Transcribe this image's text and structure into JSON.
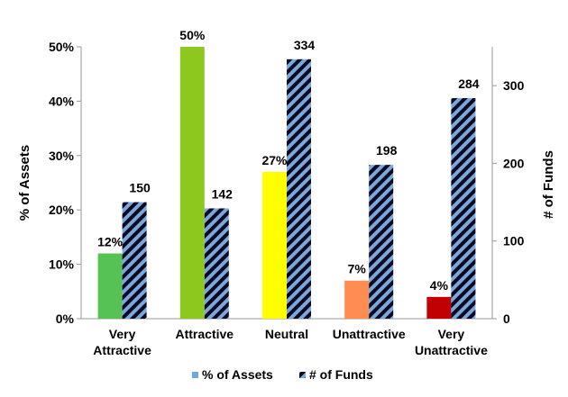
{
  "chart_data": {
    "type": "bar",
    "categories": [
      "Very Attractive",
      "Attractive",
      "Neutral",
      "Unattractive",
      "Very Unattractive"
    ],
    "category_lines": [
      [
        "Very",
        "Attractive"
      ],
      [
        "Attractive"
      ],
      [
        "Neutral"
      ],
      [
        "Unattractive"
      ],
      [
        "Very",
        "Unattractive"
      ]
    ],
    "series": [
      {
        "name": "% of Assets",
        "axis": "left",
        "values": [
          12,
          50,
          27,
          7,
          4
        ],
        "labels": [
          "12%",
          "50%",
          "27%",
          "7%",
          "4%"
        ],
        "colors": [
          "#56c256",
          "#8cc81e",
          "#ffff00",
          "#ff8c50",
          "#c00000"
        ],
        "legend_color": "#6fa8dc"
      },
      {
        "name": "# of Funds",
        "axis": "right",
        "values": [
          150,
          142,
          334,
          198,
          284
        ],
        "labels": [
          "150",
          "142",
          "334",
          "198",
          "284"
        ],
        "pattern": "diagonal-stripes",
        "stripe_colors": [
          "#7da7d9",
          "#0a0a23"
        ]
      }
    ],
    "left_axis": {
      "label": "% of Assets",
      "ylim": [
        0,
        50
      ],
      "ticks": [
        0,
        10,
        20,
        30,
        40,
        50
      ],
      "tick_labels": [
        "0%",
        "10%",
        "20%",
        "30%",
        "40%",
        "50%"
      ]
    },
    "right_axis": {
      "label": "# of Funds",
      "ylim": [
        0,
        350
      ],
      "ticks": [
        0,
        100,
        200,
        300
      ],
      "tick_labels": [
        "0",
        "100",
        "200",
        "300"
      ]
    },
    "legend": {
      "placement": "bottom",
      "entries": [
        "% of Assets",
        "# of Funds"
      ]
    },
    "grid": false
  }
}
